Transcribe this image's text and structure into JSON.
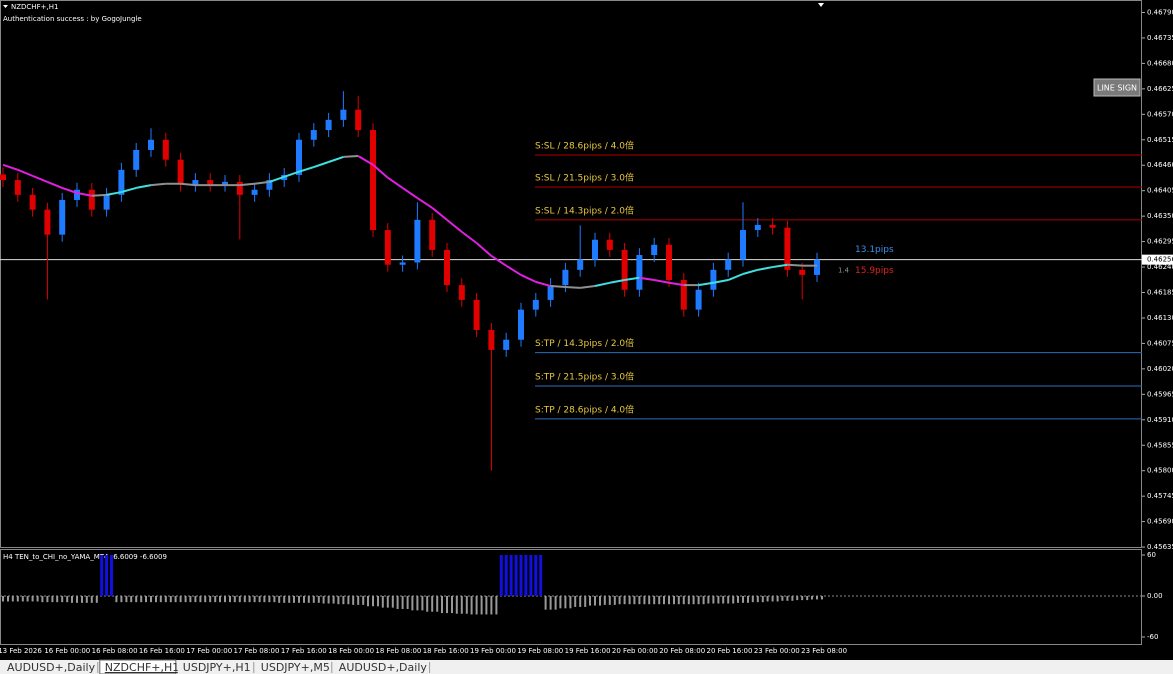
{
  "window": {
    "symbol_label": "NZDCHF+,H1",
    "auth": "Authentication success : by GogoJungle",
    "button": "LINE SIGN"
  },
  "price_chart": {
    "ylim": [
      0.45633,
      0.46817
    ],
    "yticks": [
      {
        "value": 0.4679,
        "label": "0.46790"
      },
      {
        "value": 0.46735,
        "label": "0.46735"
      },
      {
        "value": 0.4668,
        "label": "0.46680"
      },
      {
        "value": 0.46625,
        "label": "0.46625"
      },
      {
        "value": 0.4657,
        "label": "0.46570"
      },
      {
        "value": 0.46515,
        "label": "0.46515"
      },
      {
        "value": 0.4646,
        "label": "0.46460"
      },
      {
        "value": 0.46405,
        "label": "0.46405"
      },
      {
        "value": 0.4635,
        "label": "0.46350"
      },
      {
        "value": 0.46295,
        "label": "0.46295"
      },
      {
        "value": 0.4624,
        "label": "0.46240"
      },
      {
        "value": 0.46185,
        "label": "0.46185"
      },
      {
        "value": 0.4613,
        "label": "0.46130"
      },
      {
        "value": 0.46075,
        "label": "0.46075"
      },
      {
        "value": 0.4602,
        "label": "0.46020"
      },
      {
        "value": 0.45965,
        "label": "0.45965"
      },
      {
        "value": 0.4591,
        "label": "0.45910"
      },
      {
        "value": 0.45855,
        "label": "0.45855"
      },
      {
        "value": 0.458,
        "label": "0.45800"
      },
      {
        "value": 0.45745,
        "label": "0.45745"
      },
      {
        "value": 0.4569,
        "label": "0.45690"
      },
      {
        "value": 0.45635,
        "label": "0.45635"
      }
    ],
    "current_price": {
      "value": 0.46256,
      "label": "0.46256"
    },
    "colors": {
      "up": "#1e7bff",
      "down": "#e00000",
      "ma_up": "#40e0e0",
      "ma_down": "#e020e0",
      "ma_flat": "#909090"
    },
    "candles": [
      [
        0.4644,
        0.46455,
        0.46413,
        0.46428
      ],
      [
        0.46428,
        0.46443,
        0.46381,
        0.46396
      ],
      [
        0.46396,
        0.46411,
        0.46349,
        0.46364
      ],
      [
        0.46364,
        0.46379,
        0.4617,
        0.4631
      ],
      [
        0.4631,
        0.464,
        0.46295,
        0.46385
      ],
      [
        0.46385,
        0.46422,
        0.4637,
        0.46407
      ],
      [
        0.46407,
        0.46422,
        0.46349,
        0.46364
      ],
      [
        0.46364,
        0.46411,
        0.46349,
        0.46396
      ],
      [
        0.46396,
        0.46465,
        0.46381,
        0.4645
      ],
      [
        0.4645,
        0.46508,
        0.46435,
        0.46493
      ],
      [
        0.46493,
        0.4654,
        0.46478,
        0.46515
      ],
      [
        0.46515,
        0.4653,
        0.46457,
        0.46472
      ],
      [
        0.46472,
        0.46487,
        0.46403,
        0.46418
      ],
      [
        0.46418,
        0.46443,
        0.46403,
        0.46428
      ],
      [
        0.46428,
        0.46443,
        0.46403,
        0.46418
      ],
      [
        0.46418,
        0.46439,
        0.46403,
        0.46424
      ],
      [
        0.46424,
        0.46439,
        0.463,
        0.46396
      ],
      [
        0.46396,
        0.46422,
        0.46381,
        0.46407
      ],
      [
        0.46407,
        0.46443,
        0.46392,
        0.46428
      ],
      [
        0.46428,
        0.46454,
        0.46413,
        0.46439
      ],
      [
        0.46439,
        0.4653,
        0.46424,
        0.46515
      ],
      [
        0.46515,
        0.46551,
        0.465,
        0.46536
      ],
      [
        0.46536,
        0.46573,
        0.46521,
        0.46558
      ],
      [
        0.46558,
        0.4662,
        0.46543,
        0.4658
      ],
      [
        0.4658,
        0.4661,
        0.46521,
        0.46536
      ],
      [
        0.46536,
        0.46551,
        0.46305,
        0.4632
      ],
      [
        0.4632,
        0.46335,
        0.4623,
        0.46245
      ],
      [
        0.46245,
        0.46265,
        0.4623,
        0.4625
      ],
      [
        0.4625,
        0.4638,
        0.46235,
        0.46342
      ],
      [
        0.46342,
        0.46357,
        0.46262,
        0.46277
      ],
      [
        0.46277,
        0.46292,
        0.46186,
        0.46201
      ],
      [
        0.46201,
        0.46216,
        0.46154,
        0.46169
      ],
      [
        0.46169,
        0.46184,
        0.46089,
        0.46104
      ],
      [
        0.46104,
        0.46119,
        0.458,
        0.46061
      ],
      [
        0.46061,
        0.46098,
        0.46046,
        0.46083
      ],
      [
        0.46083,
        0.46163,
        0.46068,
        0.46148
      ],
      [
        0.46148,
        0.46184,
        0.46133,
        0.46169
      ],
      [
        0.46169,
        0.46216,
        0.46154,
        0.46201
      ],
      [
        0.46201,
        0.46249,
        0.46186,
        0.46234
      ],
      [
        0.46234,
        0.4633,
        0.46219,
        0.46256
      ],
      [
        0.46256,
        0.46314,
        0.46241,
        0.46299
      ],
      [
        0.46299,
        0.46314,
        0.46262,
        0.46277
      ],
      [
        0.46277,
        0.46292,
        0.46176,
        0.46191
      ],
      [
        0.46191,
        0.46281,
        0.46176,
        0.46266
      ],
      [
        0.46266,
        0.46303,
        0.46251,
        0.46288
      ],
      [
        0.46288,
        0.46303,
        0.46197,
        0.46212
      ],
      [
        0.46212,
        0.46227,
        0.46133,
        0.46148
      ],
      [
        0.46148,
        0.46206,
        0.46133,
        0.46191
      ],
      [
        0.46191,
        0.46249,
        0.46176,
        0.46234
      ],
      [
        0.46234,
        0.46271,
        0.46219,
        0.46256
      ],
      [
        0.46256,
        0.4638,
        0.46241,
        0.4632
      ],
      [
        0.4632,
        0.46346,
        0.46305,
        0.46331
      ],
      [
        0.46331,
        0.46346,
        0.4631,
        0.46325
      ],
      [
        0.46325,
        0.4634,
        0.46219,
        0.46234
      ],
      [
        0.46234,
        0.46249,
        0.4617,
        0.46223
      ],
      [
        0.46223,
        0.46271,
        0.46208,
        0.46256
      ]
    ],
    "ma": [
      0.46461,
      0.4645,
      0.46437,
      0.46424,
      0.46411,
      0.464,
      0.46394,
      0.46396,
      0.46402,
      0.46411,
      0.46417,
      0.4642,
      0.4642,
      0.46417,
      0.46417,
      0.46417,
      0.46417,
      0.4642,
      0.46424,
      0.46435,
      0.46446,
      0.46456,
      0.46467,
      0.46478,
      0.4648,
      0.46461,
      0.46433,
      0.46411,
      0.46389,
      0.46368,
      0.46342,
      0.46316,
      0.46292,
      0.46264,
      0.46243,
      0.46223,
      0.46208,
      0.46199,
      0.46197,
      0.46195,
      0.46199,
      0.46206,
      0.46212,
      0.46217,
      0.46212,
      0.46206,
      0.46201,
      0.46201,
      0.46206,
      0.46212,
      0.46225,
      0.46234,
      0.4624,
      0.46245,
      0.46243,
      0.46243
    ],
    "levels": [
      {
        "label": "S:SL / 28.6pips / 4.0倍",
        "value": 0.46482,
        "color": "#b00000"
      },
      {
        "label": "S:SL / 21.5pips / 3.0倍",
        "value": 0.46413,
        "color": "#b00000"
      },
      {
        "label": "S:SL / 14.3pips / 2.0倍",
        "value": 0.46342,
        "color": "#b00000"
      },
      {
        "label": "S:TP / 14.3pips / 2.0倍",
        "value": 0.46055,
        "color": "#2a6fb8"
      },
      {
        "label": "S:TP / 21.5pips / 3.0倍",
        "value": 0.45983,
        "color": "#2a6fb8"
      },
      {
        "label": "S:TP / 28.6pips / 4.0倍",
        "value": 0.45912,
        "color": "#2a6fb8"
      }
    ],
    "pips": [
      {
        "label": "13.1pips",
        "color": "#3a8ee6"
      },
      {
        "label": "1.4",
        "color": "#909090"
      },
      {
        "label": "15.9pips",
        "color": "#e02020"
      }
    ]
  },
  "indicator": {
    "label": "H4  TEN_to_CHI_no_YAMA_MT4 -6.6009 -6.6009",
    "ylim": [
      -71.7,
      68.8
    ],
    "yticks": [
      60,
      {
        "value": 0,
        "label": "0.00"
      },
      -60
    ],
    "values": [
      -8,
      -8,
      -8,
      -9,
      -9,
      -10,
      -10,
      60,
      -9,
      -9,
      -9,
      -9,
      -9,
      -9,
      -9,
      -9,
      -9,
      -9,
      -9,
      -10,
      -10,
      -10,
      -11,
      -12,
      -13,
      -15,
      -17,
      -19,
      -21,
      -23,
      -25,
      -26,
      -27,
      -27,
      60,
      60,
      60,
      -20,
      -18,
      -16,
      -14,
      -13,
      -12,
      -12,
      -12,
      -12,
      -12,
      -12,
      -11,
      -11,
      -10,
      -9,
      -8,
      -7,
      -6,
      -5
    ]
  },
  "time_labels": [
    "13 Feb 2026",
    "16 Feb 00:00",
    "16 Feb 08:00",
    "16 Feb 16:00",
    "17 Feb 00:00",
    "17 Feb 08:00",
    "17 Feb 16:00",
    "18 Feb 00:00",
    "18 Feb 08:00",
    "18 Feb 16:00",
    "19 Feb 00:00",
    "19 Feb 08:00",
    "19 Feb 16:00",
    "20 Feb 00:00",
    "20 Feb 08:00",
    "20 Feb 16:00",
    "23 Feb 00:00",
    "23 Feb 08:00"
  ],
  "tabs": [
    "AUDUSD+,Daily",
    "NZDCHF+,H1",
    "USDJPY+,H1",
    "USDJPY+,M5",
    "AUDUSD+,Daily"
  ],
  "active_tab": 1
}
